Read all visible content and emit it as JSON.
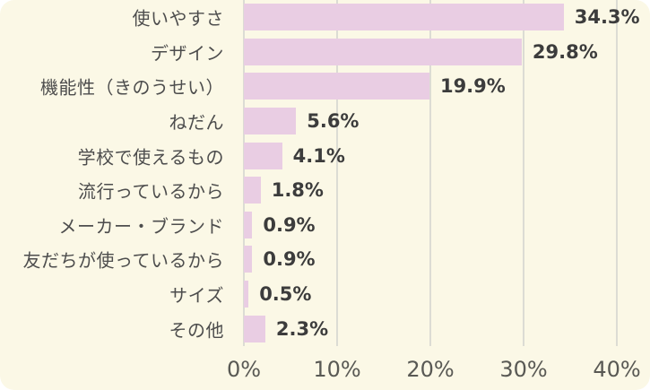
{
  "chart_data": {
    "type": "bar",
    "orientation": "horizontal",
    "title": "",
    "xlabel": "",
    "ylabel": "",
    "categories": [
      "使いやすさ",
      "デザイン",
      "機能性（きのうせい）",
      "ねだん",
      "学校で使えるもの",
      "流行っているから",
      "メーカー・ブランド",
      "友だちが使っているから",
      "サイズ",
      "その他"
    ],
    "values": [
      34.3,
      29.8,
      19.9,
      5.6,
      4.1,
      1.8,
      0.9,
      0.9,
      0.5,
      2.3
    ],
    "value_labels": [
      "34.3%",
      "29.8%",
      "19.9%",
      "5.6%",
      "4.1%",
      "1.8%",
      "0.9%",
      "0.9%",
      "0.5%",
      "2.3%"
    ],
    "x_ticks": [
      "0%",
      "10%",
      "20%",
      "30%",
      "40%"
    ],
    "x_tick_values": [
      0,
      10,
      20,
      30,
      40
    ],
    "xlim": [
      0,
      40
    ],
    "grid": true,
    "legend": "none",
    "colors": {
      "background": "#FBF8E6",
      "bar": "#E9CDE3",
      "gridline": "#DCDCD4",
      "category_label": "#4D4D4D",
      "value_label": "#3C3C3C",
      "axis_label": "#595954",
      "page": "#FFFFFF"
    }
  }
}
